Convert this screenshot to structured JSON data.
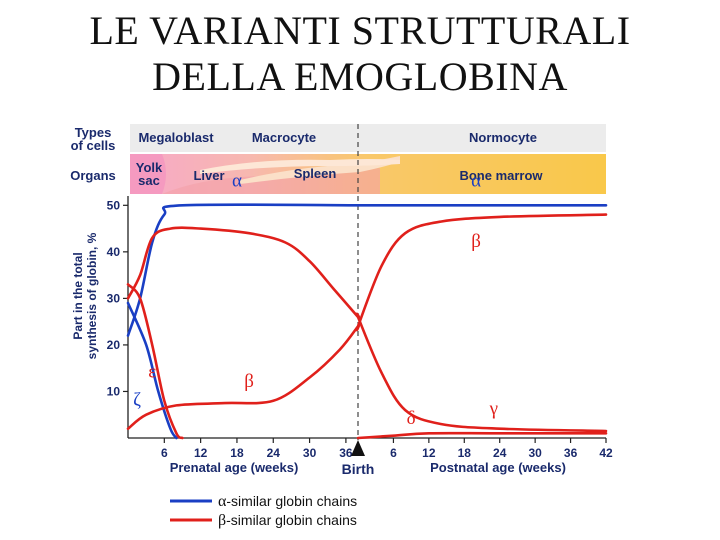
{
  "slide": {
    "title_line1": "LE  VARIANTI  STRUTTURALI",
    "title_line2": "DELLA EMOGLOBINA"
  },
  "figure": {
    "row_labels": {
      "types_line1": "Types",
      "types_line2": "of cells",
      "organs": "Organs"
    },
    "cell_types": [
      "Megaloblast",
      "Macrocyte",
      "Normocyte"
    ],
    "organs": {
      "yolk_line1": "Yolk",
      "yolk_line2": "sac",
      "liver": "Liver",
      "spleen": "Spleen",
      "bone_marrow": "Bone marrow"
    },
    "birth_label": "Birth",
    "colors": {
      "alpha": "#1a3fc4",
      "beta": "#e0201b",
      "header_bg": "#ececec",
      "organ_bg": "#f9c84a"
    }
  },
  "chart_data": {
    "type": "line",
    "ylabel_line1": "Part in the total",
    "ylabel_line2": "synthesis of globin, %",
    "yticks": [
      "10",
      "20",
      "30",
      "40",
      "50"
    ],
    "ylim": [
      0,
      52
    ],
    "xlabel_prenatal": "Prenatal age (weeks)",
    "xlabel_postnatal": "Postnatal age (weeks)",
    "prenatal_ticks": [
      "6",
      "12",
      "18",
      "24",
      "30",
      "36"
    ],
    "postnatal_ticks": [
      "6",
      "12",
      "18",
      "24",
      "30",
      "36",
      "42"
    ],
    "xlim_prenatal": [
      0,
      38
    ],
    "xlim_postnatal": [
      0,
      42
    ],
    "series": [
      {
        "name": "α",
        "family": "alpha",
        "pre": [
          [
            0,
            22
          ],
          [
            2,
            30
          ],
          [
            4,
            42
          ],
          [
            6,
            48
          ],
          [
            9,
            50
          ],
          [
            38,
            50
          ]
        ],
        "post": [
          [
            0,
            50
          ],
          [
            42,
            50
          ]
        ]
      },
      {
        "name": "ζ",
        "family": "alpha",
        "pre": [
          [
            0,
            29
          ],
          [
            3,
            20
          ],
          [
            5,
            10
          ],
          [
            7,
            2
          ],
          [
            8,
            0
          ]
        ],
        "post": []
      },
      {
        "name": "ε",
        "family": "beta",
        "pre": [
          [
            0,
            33
          ],
          [
            2,
            30
          ],
          [
            4,
            20
          ],
          [
            6,
            8
          ],
          [
            8,
            1
          ],
          [
            9,
            0
          ]
        ],
        "post": []
      },
      {
        "name": "β",
        "family": "beta",
        "pre": [
          [
            0,
            2
          ],
          [
            3,
            5
          ],
          [
            8,
            7
          ],
          [
            16,
            7.5
          ],
          [
            24,
            8
          ],
          [
            30,
            13
          ],
          [
            35,
            19
          ],
          [
            38,
            24
          ]
        ],
        "post": [
          [
            0,
            24
          ],
          [
            4,
            37
          ],
          [
            8,
            44
          ],
          [
            14,
            46.5
          ],
          [
            24,
            47.5
          ],
          [
            42,
            48
          ]
        ]
      },
      {
        "name": "γ",
        "family": "beta",
        "pre": [
          [
            0,
            30
          ],
          [
            2,
            35
          ],
          [
            4,
            43
          ],
          [
            7,
            45
          ],
          [
            12,
            45
          ],
          [
            20,
            44
          ],
          [
            26,
            42
          ],
          [
            30,
            38
          ],
          [
            34,
            32
          ],
          [
            38,
            26
          ]
        ],
        "post": [
          [
            0,
            26
          ],
          [
            4,
            14
          ],
          [
            8,
            6
          ],
          [
            14,
            3
          ],
          [
            24,
            2
          ],
          [
            42,
            1.5
          ]
        ]
      },
      {
        "name": "δ",
        "family": "beta",
        "pre": [],
        "post": [
          [
            0,
            0
          ],
          [
            6,
            0.5
          ],
          [
            12,
            1
          ],
          [
            24,
            1
          ],
          [
            42,
            1
          ]
        ]
      }
    ],
    "series_labels": [
      "α",
      "α",
      "β",
      "β",
      "ε",
      "ζ",
      "δ",
      "γ"
    ],
    "legend": [
      {
        "symbol": "α",
        "text": "-similar globin chains",
        "family": "alpha"
      },
      {
        "symbol": "β",
        "text": "-similar globin chains",
        "family": "beta"
      }
    ]
  }
}
